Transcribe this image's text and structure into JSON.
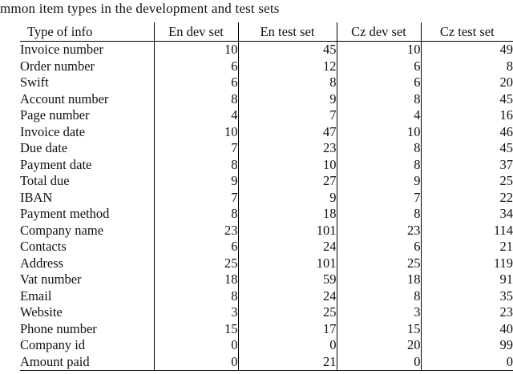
{
  "caption": "mmon item types in the development and test sets",
  "table": {
    "columns": [
      "Type of info",
      "En dev set",
      "En test set",
      "Cz dev set",
      "Cz test set"
    ],
    "rows": [
      {
        "label": "Invoice number",
        "values": [
          10,
          45,
          10,
          49
        ]
      },
      {
        "label": "Order number",
        "values": [
          6,
          12,
          6,
          8
        ]
      },
      {
        "label": "Swift",
        "values": [
          6,
          8,
          6,
          20
        ]
      },
      {
        "label": "Account number",
        "values": [
          8,
          9,
          8,
          45
        ]
      },
      {
        "label": "Page number",
        "values": [
          4,
          7,
          4,
          16
        ]
      },
      {
        "label": "Invoice date",
        "values": [
          10,
          47,
          10,
          46
        ]
      },
      {
        "label": "Due date",
        "values": [
          7,
          23,
          8,
          45
        ]
      },
      {
        "label": "Payment date",
        "values": [
          8,
          10,
          8,
          37
        ]
      },
      {
        "label": "Total due",
        "values": [
          9,
          27,
          9,
          25
        ]
      },
      {
        "label": "IBAN",
        "values": [
          7,
          9,
          7,
          22
        ]
      },
      {
        "label": "Payment method",
        "values": [
          8,
          18,
          8,
          34
        ]
      },
      {
        "label": "Company name",
        "values": [
          23,
          101,
          23,
          114
        ]
      },
      {
        "label": "Contacts",
        "values": [
          6,
          24,
          6,
          21
        ]
      },
      {
        "label": "Address",
        "values": [
          25,
          101,
          25,
          119
        ]
      },
      {
        "label": "Vat number",
        "values": [
          18,
          59,
          18,
          91
        ]
      },
      {
        "label": "Email",
        "values": [
          8,
          24,
          8,
          35
        ]
      },
      {
        "label": "Website",
        "values": [
          3,
          25,
          3,
          23
        ]
      },
      {
        "label": "Phone number",
        "values": [
          15,
          17,
          15,
          40
        ]
      },
      {
        "label": "Company id",
        "values": [
          0,
          0,
          20,
          99
        ]
      },
      {
        "label": "Amount paid",
        "values": [
          0,
          21,
          0,
          0
        ]
      }
    ]
  },
  "colors": {
    "text": "#111111",
    "rule": "#000000",
    "background": "#ffffff"
  }
}
